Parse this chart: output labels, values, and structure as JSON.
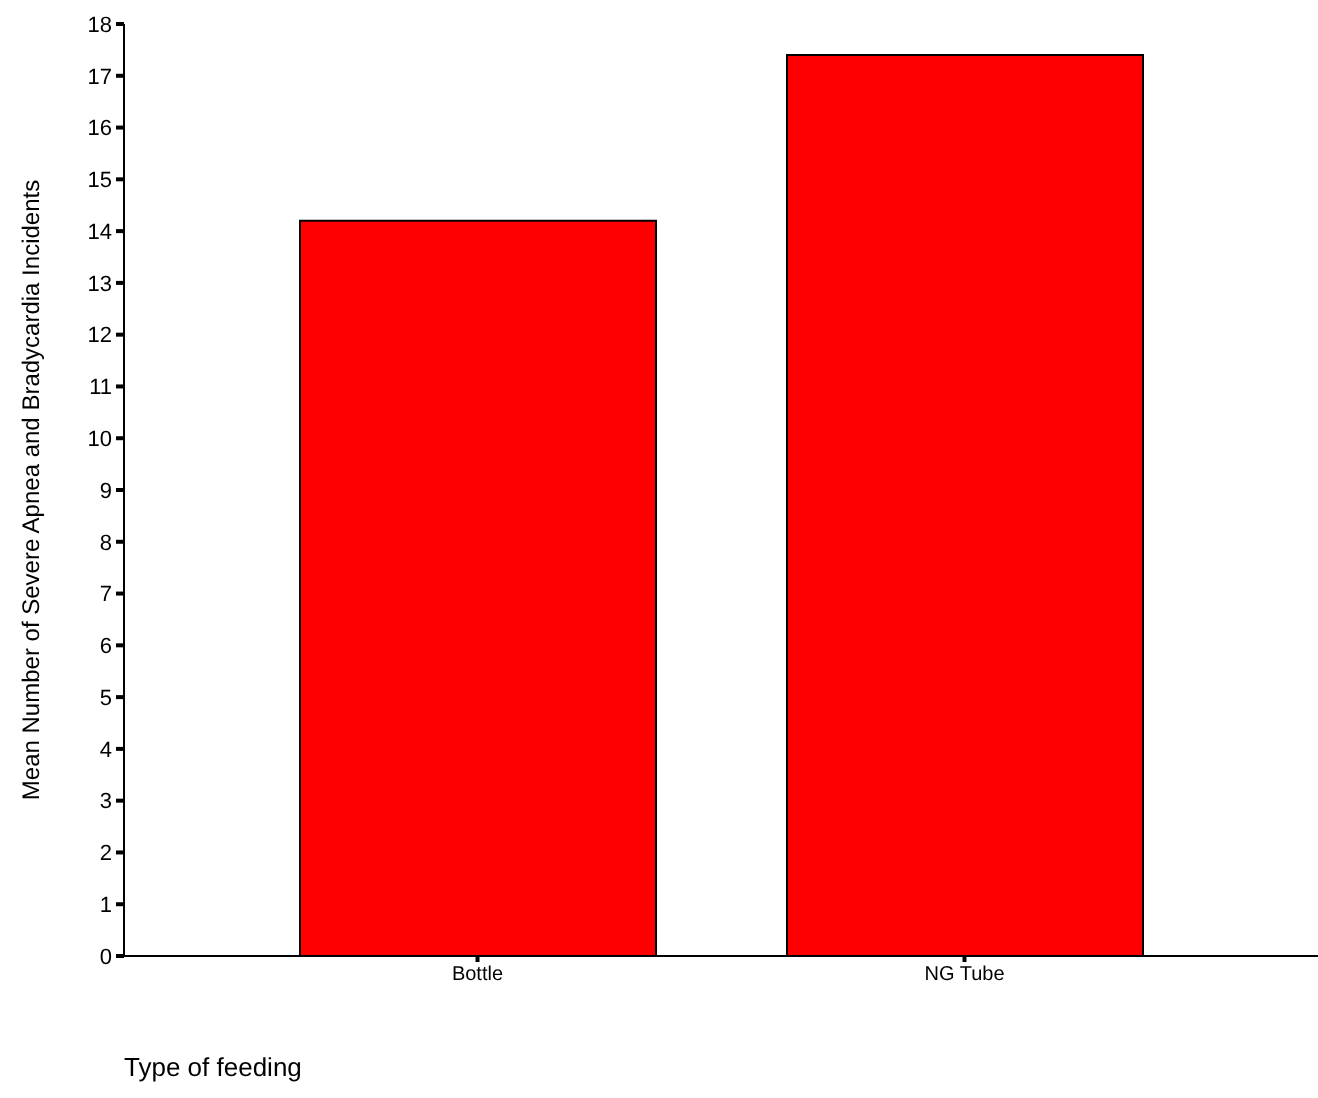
{
  "chart_data": {
    "type": "bar",
    "categories": [
      "Bottle",
      "NG Tube"
    ],
    "values": [
      14.2,
      17.4
    ],
    "color": "#ff0000",
    "xlabel": "Type of feeding",
    "ylabel": "Mean Number of Severe Apnea and Bradycardia Incidents",
    "ylim": [
      0,
      18
    ],
    "yticks": [
      0,
      1,
      2,
      3,
      4,
      5,
      6,
      7,
      8,
      9,
      10,
      11,
      12,
      13,
      14,
      15,
      16,
      17,
      18
    ],
    "grid": false,
    "legend": false
  }
}
